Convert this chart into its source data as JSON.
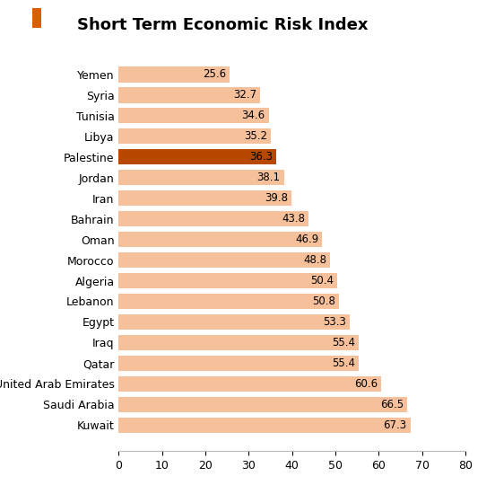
{
  "title": "Short Term Economic Risk Index",
  "title_icon_color": "#d4600a",
  "categories": [
    "Yemen",
    "Syria",
    "Tunisia",
    "Libya",
    "Palestine",
    "Jordan",
    "Iran",
    "Bahrain",
    "Oman",
    "Morocco",
    "Algeria",
    "Lebanon",
    "Egypt",
    "Iraq",
    "Qatar",
    "United Arab Emirates",
    "Saudi Arabia",
    "Kuwait"
  ],
  "values": [
    25.6,
    32.7,
    34.6,
    35.2,
    36.3,
    38.1,
    39.8,
    43.8,
    46.9,
    48.8,
    50.4,
    50.8,
    53.3,
    55.4,
    55.4,
    60.6,
    66.5,
    67.3
  ],
  "bar_color_default": "#f5c09a",
  "bar_color_highlight": "#b84800",
  "highlight_index": 4,
  "xlim": [
    0,
    80
  ],
  "xticks": [
    0,
    10,
    20,
    30,
    40,
    50,
    60,
    70,
    80
  ],
  "background_color": "#ffffff",
  "label_fontsize": 9,
  "value_fontsize": 8.5,
  "title_fontsize": 13
}
